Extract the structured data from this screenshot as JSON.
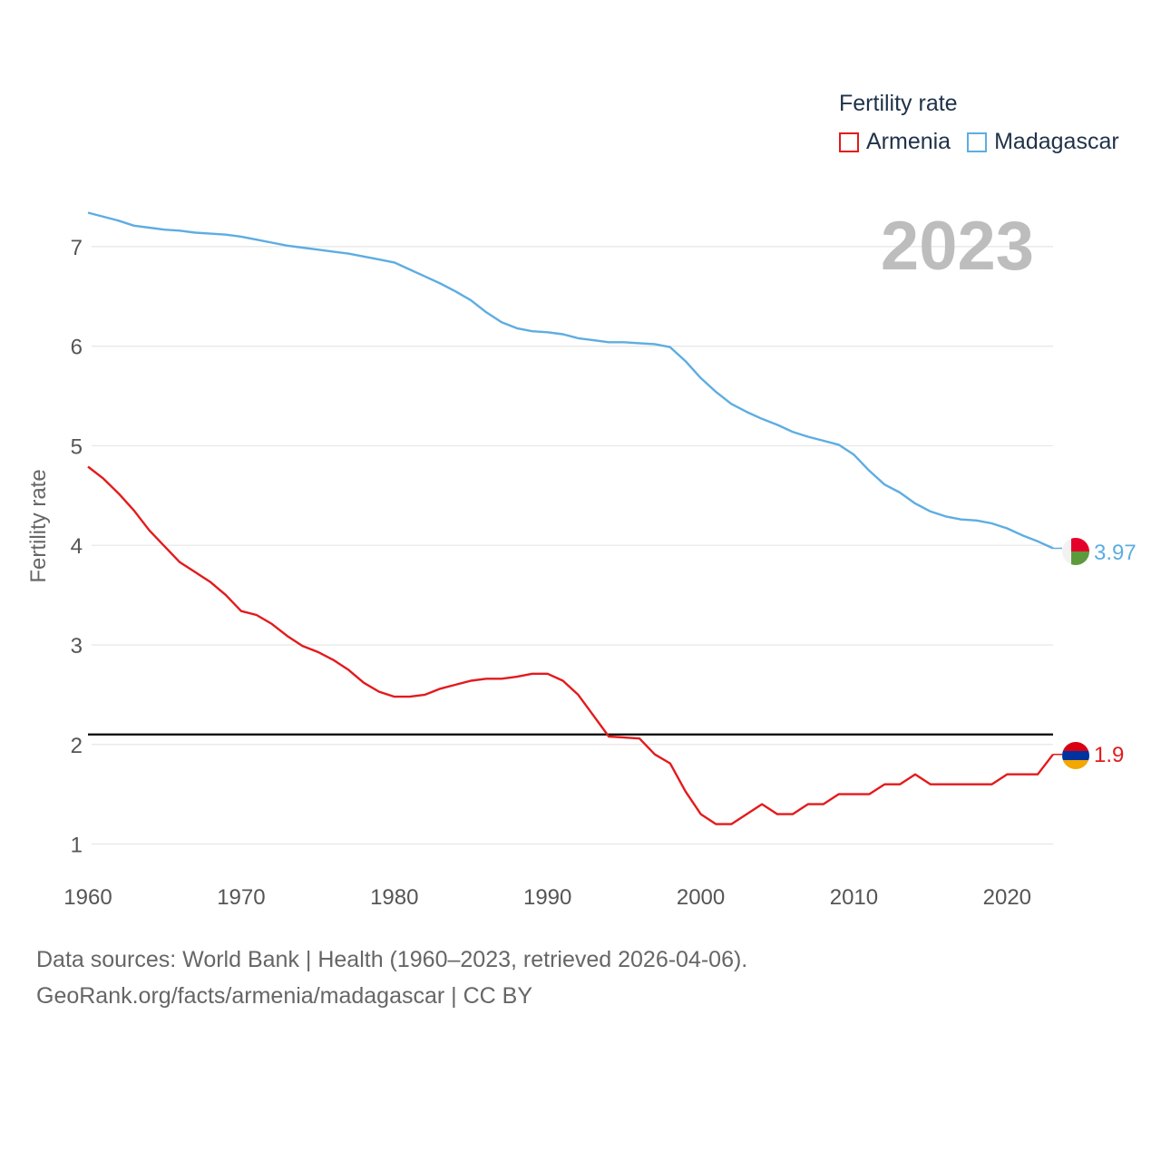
{
  "legend": {
    "title": "Fertility rate",
    "items": [
      {
        "label": "Armenia",
        "color": "#e31a1c"
      },
      {
        "label": "Madagascar",
        "color": "#5dade2"
      }
    ]
  },
  "year_label": "2023",
  "footer": {
    "line1": "Data sources: World Bank | Health (1960–2023, retrieved 2026-04-06).",
    "line2": "GeoRank.org/facts/armenia/madagascar | CC BY"
  },
  "chart_data": {
    "type": "line",
    "title": "Fertility rate",
    "xlabel": "",
    "ylabel": "Fertility rate",
    "xlim": [
      1960,
      2023
    ],
    "ylim": [
      0.85,
      7.6
    ],
    "x_ticks": [
      1960,
      1970,
      1980,
      1990,
      2000,
      2010,
      2020
    ],
    "y_ticks": [
      1,
      2,
      3,
      4,
      5,
      6,
      7
    ],
    "grid": true,
    "legend_position": "top-right",
    "reference_line": {
      "y": 2.1,
      "color": "#000000"
    },
    "x": [
      1960,
      1961,
      1962,
      1963,
      1964,
      1965,
      1966,
      1967,
      1968,
      1969,
      1970,
      1971,
      1972,
      1973,
      1974,
      1975,
      1976,
      1977,
      1978,
      1979,
      1980,
      1981,
      1982,
      1983,
      1984,
      1985,
      1986,
      1987,
      1988,
      1989,
      1990,
      1991,
      1992,
      1993,
      1994,
      1995,
      1996,
      1997,
      1998,
      1999,
      2000,
      2001,
      2002,
      2003,
      2004,
      2005,
      2006,
      2007,
      2008,
      2009,
      2010,
      2011,
      2012,
      2013,
      2014,
      2015,
      2016,
      2017,
      2018,
      2019,
      2020,
      2021,
      2022,
      2023
    ],
    "series": [
      {
        "name": "Armenia",
        "color": "#e31a1c",
        "end_label": "1.9",
        "values": [
          4.79,
          4.67,
          4.52,
          4.35,
          4.15,
          3.99,
          3.83,
          3.73,
          3.63,
          3.5,
          3.34,
          3.3,
          3.21,
          3.09,
          2.99,
          2.93,
          2.85,
          2.75,
          2.62,
          2.53,
          2.48,
          2.48,
          2.5,
          2.56,
          2.6,
          2.64,
          2.66,
          2.66,
          2.68,
          2.71,
          2.71,
          2.64,
          2.5,
          2.29,
          2.08,
          2.07,
          2.06,
          1.9,
          1.81,
          1.53,
          1.3,
          1.2,
          1.2,
          1.3,
          1.4,
          1.3,
          1.3,
          1.4,
          1.4,
          1.5,
          1.5,
          1.5,
          1.6,
          1.6,
          1.7,
          1.6,
          1.6,
          1.6,
          1.6,
          1.6,
          1.7,
          1.7,
          1.7,
          1.9
        ]
      },
      {
        "name": "Madagascar",
        "color": "#5dade2",
        "end_label": "3.97",
        "values": [
          7.34,
          7.3,
          7.26,
          7.21,
          7.19,
          7.17,
          7.16,
          7.14,
          7.13,
          7.12,
          7.1,
          7.07,
          7.04,
          7.01,
          6.99,
          6.97,
          6.95,
          6.93,
          6.9,
          6.87,
          6.84,
          6.77,
          6.7,
          6.63,
          6.55,
          6.46,
          6.34,
          6.24,
          6.18,
          6.15,
          6.14,
          6.12,
          6.08,
          6.06,
          6.04,
          6.04,
          6.03,
          6.02,
          5.99,
          5.85,
          5.68,
          5.54,
          5.42,
          5.34,
          5.27,
          5.21,
          5.14,
          5.09,
          5.05,
          5.01,
          4.91,
          4.75,
          4.61,
          4.53,
          4.42,
          4.34,
          4.29,
          4.26,
          4.25,
          4.22,
          4.17,
          4.1,
          4.04,
          3.97
        ]
      }
    ]
  }
}
